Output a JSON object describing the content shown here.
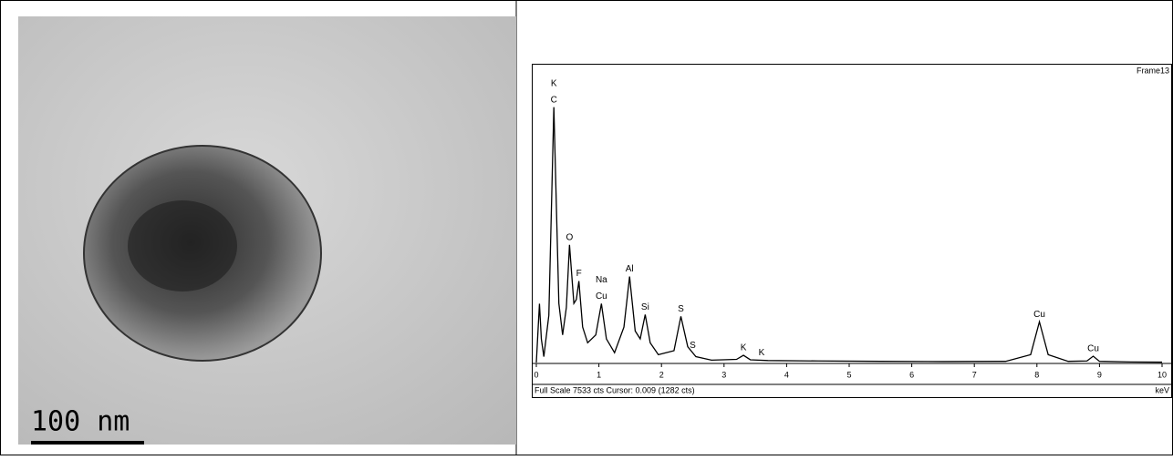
{
  "image_panel": {
    "scale_label": "100 nm"
  },
  "chart_data": {
    "type": "line",
    "frame_label": "Frame13",
    "footer": "Full Scale 7533 cts Cursor: 0.009  (1282 cts)",
    "x_unit": "keV",
    "x": [
      0,
      0.03,
      0.05,
      0.08,
      0.12,
      0.2,
      0.28,
      0.36,
      0.42,
      0.48,
      0.53,
      0.6,
      0.64,
      0.68,
      0.74,
      0.82,
      0.95,
      1.04,
      1.12,
      1.25,
      1.4,
      1.49,
      1.58,
      1.66,
      1.74,
      1.82,
      1.95,
      2.2,
      2.31,
      2.42,
      2.55,
      2.8,
      3.2,
      3.31,
      3.42,
      3.7,
      4.5,
      5.5,
      6.5,
      7.5,
      7.9,
      8.04,
      8.18,
      8.5,
      8.8,
      8.9,
      9.0,
      9.5,
      10
    ],
    "series": [
      {
        "color": "#000000",
        "values": [
          0,
          900,
          1493,
          600,
          150,
          1200,
          6477,
          1500,
          700,
          1400,
          2986,
          1500,
          1600,
          2067,
          900,
          500,
          700,
          1493,
          600,
          250,
          900,
          2182,
          800,
          600,
          1217,
          500,
          200,
          300,
          1171,
          400,
          150,
          60,
          80,
          184,
          70,
          50,
          40,
          30,
          25,
          30,
          200,
          1034,
          200,
          30,
          40,
          161,
          30,
          15,
          10
        ]
      }
    ],
    "xlim": [
      0,
      10
    ],
    "xticks": [
      0,
      1,
      2,
      3,
      4,
      5,
      6,
      7,
      8,
      9,
      10
    ],
    "ylim": [
      0,
      7533
    ],
    "annotations": [
      {
        "text": "C",
        "x": 0.28
      },
      {
        "text": "K",
        "x": 0.28
      },
      {
        "text": "O",
        "x": 0.53
      },
      {
        "text": "F",
        "x": 0.68
      },
      {
        "text": "Cu",
        "x": 1.04
      },
      {
        "text": "Na",
        "x": 1.04
      },
      {
        "text": "Al",
        "x": 1.49
      },
      {
        "text": "Si",
        "x": 1.74
      },
      {
        "text": "S",
        "x": 2.31
      },
      {
        "text": "S",
        "x": 2.5
      },
      {
        "text": "K",
        "x": 3.31
      },
      {
        "text": "K",
        "x": 3.6
      },
      {
        "text": "Cu",
        "x": 8.04
      },
      {
        "text": "Cu",
        "x": 8.9
      }
    ]
  }
}
